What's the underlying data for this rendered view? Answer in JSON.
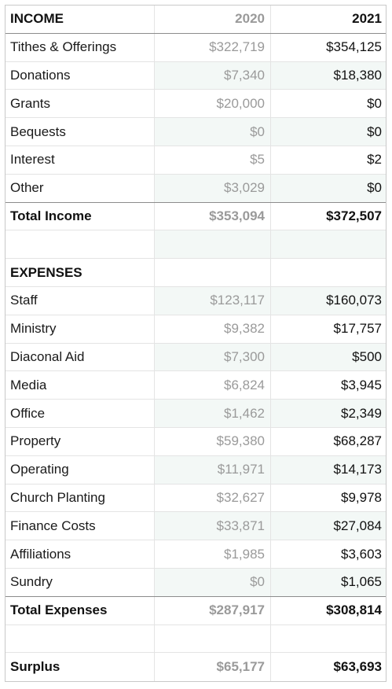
{
  "header": {
    "label": "INCOME",
    "col_2020": "2020",
    "col_2021": "2021"
  },
  "income_rows": [
    {
      "label": "Tithes & Offerings",
      "v2020": "$322,719",
      "v2021": "$354,125"
    },
    {
      "label": "Donations",
      "v2020": "$7,340",
      "v2021": "$18,380"
    },
    {
      "label": "Grants",
      "v2020": "$20,000",
      "v2021": "$0"
    },
    {
      "label": "Bequests",
      "v2020": "$0",
      "v2021": "$0"
    },
    {
      "label": "Interest",
      "v2020": "$5",
      "v2021": "$2"
    },
    {
      "label": "Other",
      "v2020": "$3,029",
      "v2021": "$0"
    }
  ],
  "total_income": {
    "label": "Total Income",
    "v2020": "$353,094",
    "v2021": "$372,507"
  },
  "expenses_header": {
    "label": "EXPENSES"
  },
  "expense_rows": [
    {
      "label": "Staff",
      "v2020": "$123,117",
      "v2021": "$160,073"
    },
    {
      "label": "Ministry",
      "v2020": "$9,382",
      "v2021": "$17,757"
    },
    {
      "label": "Diaconal Aid",
      "v2020": "$7,300",
      "v2021": "$500"
    },
    {
      "label": "Media",
      "v2020": "$6,824",
      "v2021": "$3,945"
    },
    {
      "label": "Office",
      "v2020": "$1,462",
      "v2021": "$2,349"
    },
    {
      "label": "Property",
      "v2020": "$59,380",
      "v2021": "$68,287"
    },
    {
      "label": "Operating",
      "v2020": "$11,971",
      "v2021": "$14,173"
    },
    {
      "label": "Church Planting",
      "v2020": "$32,627",
      "v2021": "$9,978"
    },
    {
      "label": "Finance Costs",
      "v2020": "$33,871",
      "v2021": "$27,084"
    },
    {
      "label": "Affiliations",
      "v2020": "$1,985",
      "v2021": "$3,603"
    },
    {
      "label": "Sundry",
      "v2020": "$0",
      "v2021": "$1,065"
    }
  ],
  "total_expenses": {
    "label": "Total Expenses",
    "v2020": "$287,917",
    "v2021": "$308,814"
  },
  "surplus": {
    "label": "Surplus",
    "v2020": "$65,177",
    "v2021": "$63,693"
  }
}
